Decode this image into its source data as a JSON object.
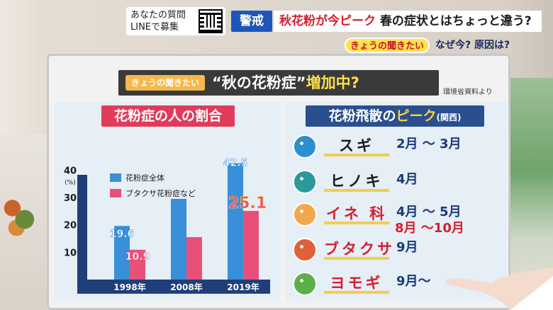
{
  "banner": {
    "line_prompt": "あなたの質問\nLINEで募集",
    "alert_label": "警戒",
    "headline_red": "秋花粉が今ピーク",
    "headline_dark": "春の症状とはちょっと違う?",
    "sub_tag": "きょうの聞きたい",
    "sub_question": "なぜ今? 原因は?"
  },
  "board": {
    "title_tag": "きょうの聞きたい",
    "title_main_left": "“秋の花粉症”",
    "title_main_right": "増加中?",
    "source": "環境省資料より"
  },
  "chart_panel_title": "花粉症の人の割合",
  "chart_data": {
    "type": "bar",
    "title": "花粉症の人の割合",
    "categories": [
      "1998年",
      "2008年",
      "2019年"
    ],
    "series": [
      {
        "name": "花粉症全体",
        "values": [
          19.6,
          29.5,
          42.5
        ],
        "color": "#3a8fd9"
      },
      {
        "name": "ブタクサ花粉症など",
        "values": [
          10.9,
          15.5,
          25.1
        ],
        "color": "#e8507a"
      }
    ],
    "data_labels": [
      "19.6",
      "10.9",
      "42.5",
      "25.1"
    ],
    "ylabel": "(%)",
    "yticks": [
      "10",
      "20",
      "30",
      "40"
    ],
    "ylim": [
      0,
      45
    ],
    "legend_position": "top-left",
    "grid": false
  },
  "peak_panel": {
    "title_main": "花粉飛散の",
    "title_accent": "ピーク",
    "title_region": "(関西)",
    "rows": [
      {
        "name": "スギ",
        "period": "2月 〜 3月",
        "period2": "",
        "name_color": "#1b1b1b",
        "icon": "cedar-pollen-icon",
        "icon_color": "#2d8fd0"
      },
      {
        "name": "ヒノキ",
        "period": "4月",
        "period2": "",
        "name_color": "#1b1b1b",
        "icon": "cypress-pollen-icon",
        "icon_color": "#2a9a9a"
      },
      {
        "name": "イネ 科",
        "period": "4月 〜 5月",
        "period2": "8月 〜10月",
        "name_color": "#d3202e",
        "icon": "grass-pollen-icon",
        "icon_color": "#f0a84a"
      },
      {
        "name": "ブタクサ",
        "period": "9月",
        "period2": "",
        "name_color": "#d3202e",
        "icon": "ragweed-pollen-icon",
        "icon_color": "#e0603a"
      },
      {
        "name": "ヨモギ",
        "period": "9月〜",
        "period2": "",
        "name_color": "#d3202e",
        "icon": "mugwort-pollen-icon",
        "icon_color": "#5ab04a"
      }
    ]
  }
}
